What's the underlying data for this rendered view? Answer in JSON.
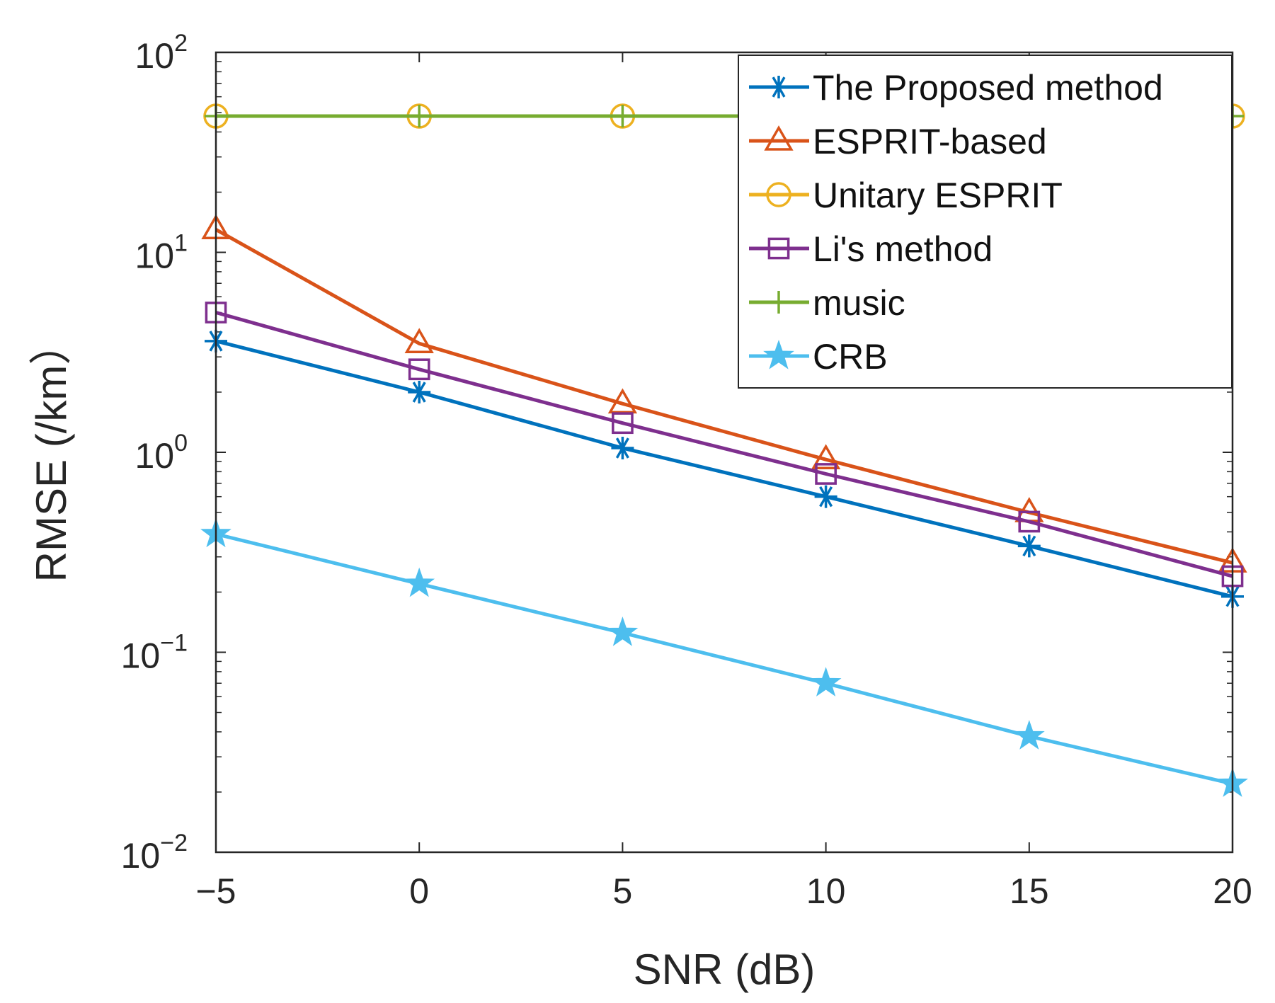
{
  "chart_data": {
    "type": "line",
    "title": "",
    "xlabel": "SNR (dB)",
    "ylabel": "RMSE (/km）",
    "yscale": "log",
    "x": [
      -5,
      0,
      5,
      10,
      15,
      20
    ],
    "xlim": [
      -5,
      20
    ],
    "ylim": [
      0.01,
      100
    ],
    "x_ticks": [
      "−5",
      "0",
      "5",
      "10",
      "15",
      "20"
    ],
    "y_ticks": [
      {
        "base": "10",
        "exp": "−2"
      },
      {
        "base": "10",
        "exp": "−1"
      },
      {
        "base": "10",
        "exp": "0"
      },
      {
        "base": "10",
        "exp": "1"
      },
      {
        "base": "10",
        "exp": "2"
      }
    ],
    "grid": false,
    "legend_position": "top-right",
    "series": [
      {
        "name": "The Proposed method",
        "color": "#0072BD",
        "marker": "asterisk",
        "values": [
          3.6,
          2.0,
          1.05,
          0.6,
          0.34,
          0.19
        ]
      },
      {
        "name": "ESPRIT-based",
        "color": "#D95319",
        "marker": "triangle",
        "values": [
          13.0,
          3.5,
          1.75,
          0.92,
          0.5,
          0.28
        ]
      },
      {
        "name": "Unitary ESPRIT",
        "color": "#EDB120",
        "marker": "circle",
        "values": [
          48,
          48,
          48,
          48,
          48,
          48
        ]
      },
      {
        "name": "Li's method",
        "color": "#7E2F8E",
        "marker": "square",
        "values": [
          5.0,
          2.6,
          1.4,
          0.78,
          0.45,
          0.24
        ]
      },
      {
        "name": "music",
        "color": "#77AC30",
        "marker": "plus",
        "values": [
          48,
          48,
          48,
          48,
          48,
          48
        ]
      },
      {
        "name": "CRB",
        "color": "#4DBEEE",
        "marker": "star",
        "values": [
          0.39,
          0.22,
          0.125,
          0.07,
          0.038,
          0.022
        ]
      }
    ]
  }
}
